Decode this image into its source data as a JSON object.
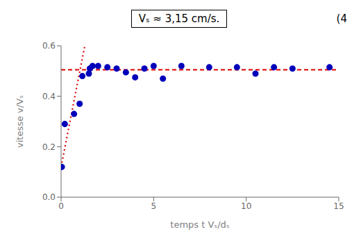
{
  "chart_data": {
    "type": "scatter",
    "title": "Vₛ ≈ 3,15 cm/s.",
    "annotations": [
      "(4"
    ],
    "x_label": "temps t Vₛ/dₛ",
    "y_label": "vitesse v/Vₛ",
    "xlim": [
      0,
      15
    ],
    "ylim": [
      0,
      0.6
    ],
    "xticks": [
      0,
      5,
      10,
      15
    ],
    "yticks": [
      {
        "value": 0,
        "label": "0.0"
      },
      0.2,
      0.4,
      0.6
    ],
    "grid": false,
    "series": [
      {
        "type": "scatter",
        "marker": "o",
        "color": "#0000bb",
        "x": [
          0.04,
          0.2,
          0.7,
          1.0,
          1.15,
          1.5,
          1.55,
          1.7,
          2.0,
          2.5,
          3.0,
          3.5,
          4.0,
          4.5,
          5.0,
          5.5,
          6.5,
          8.0,
          9.5,
          10.5,
          11.5,
          12.5,
          14.5
        ],
        "values": [
          0.12,
          0.29,
          0.33,
          0.37,
          0.48,
          0.49,
          0.51,
          0.52,
          0.52,
          0.515,
          0.51,
          0.495,
          0.475,
          0.51,
          0.52,
          0.47,
          0.52,
          0.515,
          0.515,
          0.49,
          0.515,
          0.51,
          0.515
        ]
      },
      {
        "type": "line",
        "line_style": "dashed",
        "color": "#dd0000",
        "x": [
          0,
          15
        ],
        "values": [
          0.505,
          0.505
        ]
      },
      {
        "type": "line",
        "line_style": "dotted",
        "color": "#dd0000",
        "x": [
          0,
          1.28
        ],
        "values": [
          0.12,
          0.6
        ]
      }
    ]
  }
}
